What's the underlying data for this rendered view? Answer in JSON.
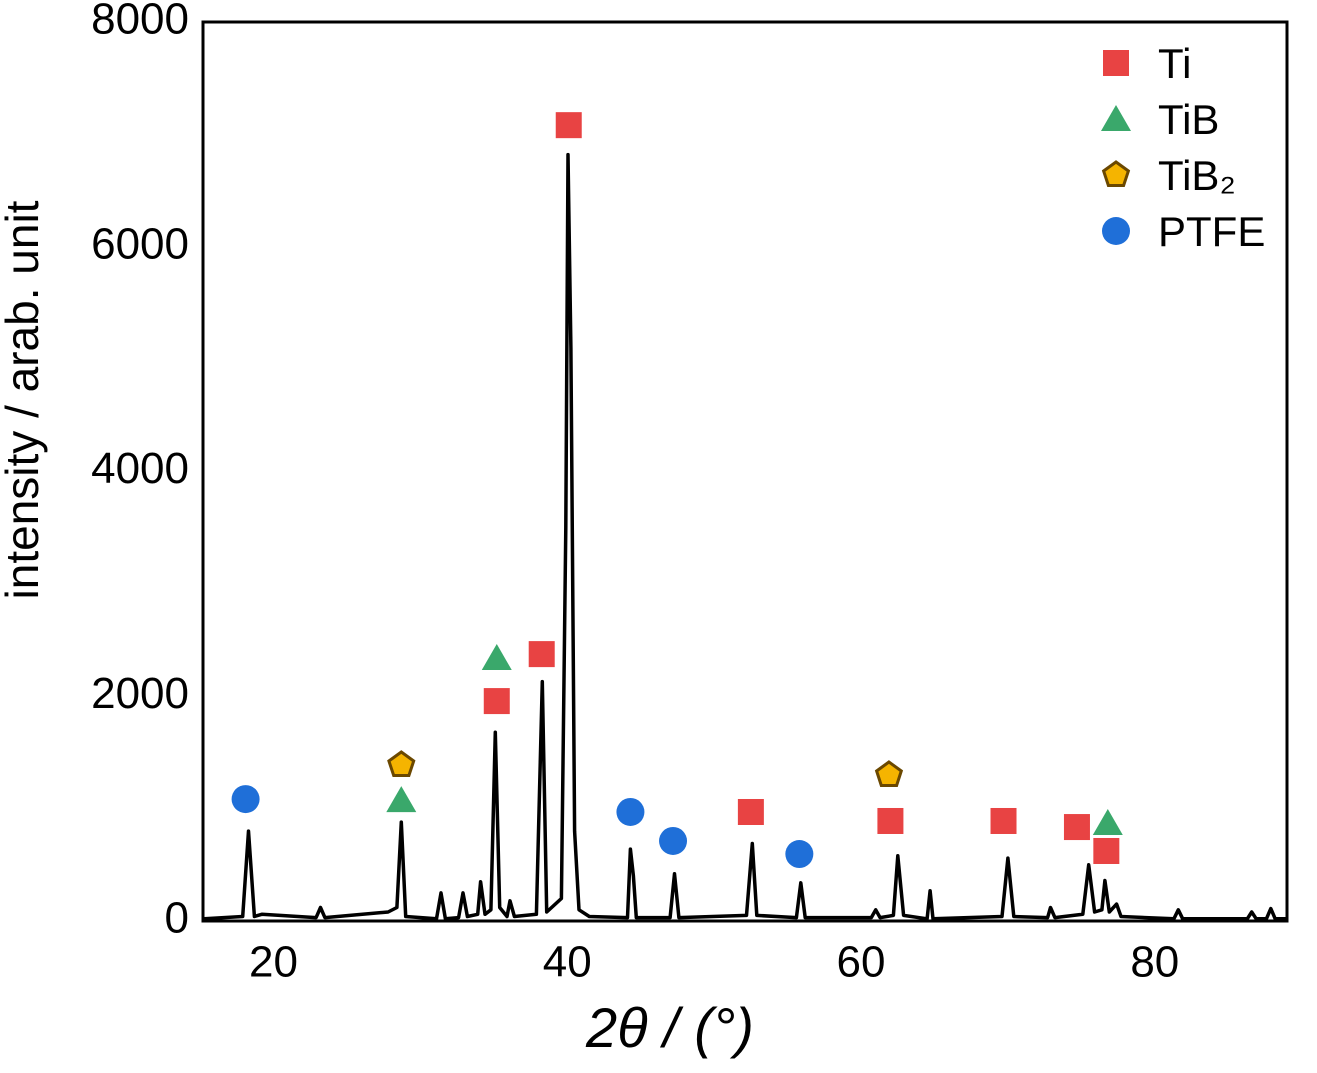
{
  "chart_data": {
    "type": "line",
    "xlabel": "2θ / (°)",
    "ylabel": "intensity / arab. unit",
    "xlim": [
      15.2,
      89
    ],
    "ylim": [
      0,
      8000
    ],
    "xticks": [
      20,
      40,
      60,
      80
    ],
    "yticks": [
      0,
      2000,
      4000,
      6000,
      8000
    ],
    "grid": false,
    "legend": "upper right",
    "color": "#000000",
    "x": [
      15.3,
      17.9,
      18.3,
      18.7,
      19.2,
      22.9,
      23.2,
      23.5,
      27.8,
      28.4,
      28.7,
      29.0,
      31.1,
      31.4,
      31.7,
      32.6,
      32.9,
      33.2,
      33.9,
      34.1,
      34.4,
      34.8,
      35.1,
      35.4,
      35.9,
      36.1,
      36.4,
      37.9,
      38.3,
      38.6,
      39.6,
      39.9,
      40.05,
      40.25,
      40.5,
      40.8,
      41.5,
      44.1,
      44.3,
      44.5,
      44.7,
      47.0,
      47.3,
      47.6,
      52.2,
      52.6,
      52.9,
      55.6,
      55.9,
      56.2,
      60.7,
      61.0,
      61.3,
      62.2,
      62.5,
      62.9,
      64.5,
      64.7,
      64.9,
      69.6,
      70.0,
      70.4,
      72.7,
      72.9,
      73.2,
      75.1,
      75.5,
      75.9,
      76.4,
      76.6,
      76.9,
      77.4,
      77.7,
      81.3,
      81.6,
      81.9,
      86.3,
      86.6,
      86.9,
      87.6,
      87.9,
      88.2,
      89.0
    ],
    "values": [
      20,
      40,
      800,
      40,
      60,
      30,
      120,
      30,
      80,
      120,
      880,
      40,
      20,
      250,
      20,
      30,
      250,
      40,
      60,
      350,
      60,
      100,
      1680,
      120,
      40,
      180,
      40,
      60,
      2130,
      80,
      200,
      3500,
      6820,
      5100,
      800,
      100,
      40,
      30,
      640,
      400,
      30,
      30,
      420,
      30,
      50,
      690,
      50,
      30,
      340,
      30,
      30,
      100,
      30,
      50,
      580,
      50,
      20,
      270,
      20,
      40,
      560,
      40,
      30,
      120,
      30,
      60,
      500,
      80,
      100,
      360,
      80,
      150,
      40,
      20,
      100,
      20,
      20,
      80,
      20,
      20,
      110,
      20,
      20
    ],
    "phases": [
      {
        "name": "Ti",
        "color": "#e84343",
        "shape": "square",
        "x": [
          40.1,
          38.26,
          35.2,
          52.5,
          62.0,
          69.7,
          74.7,
          76.7
        ],
        "values": [
          7082,
          2375,
          1957,
          970,
          890,
          890,
          836,
          623
        ]
      },
      {
        "name": "TiB",
        "color": "#3aa86b",
        "shape": "triangle",
        "x": [
          35.2,
          28.7,
          76.8
        ],
        "values": [
          2340,
          1076,
          872
        ]
      },
      {
        "name": "TiB₂",
        "color": "#f5b400",
        "shape": "pentagon",
        "x": [
          28.7,
          61.9
        ],
        "values": [
          1388,
          1299
        ]
      },
      {
        "name": "PTFE",
        "color": "#1f6fd8",
        "shape": "circle",
        "x": [
          18.1,
          44.3,
          47.2,
          55.8
        ],
        "values": [
          1085,
          970,
          712,
          596
        ]
      }
    ]
  }
}
